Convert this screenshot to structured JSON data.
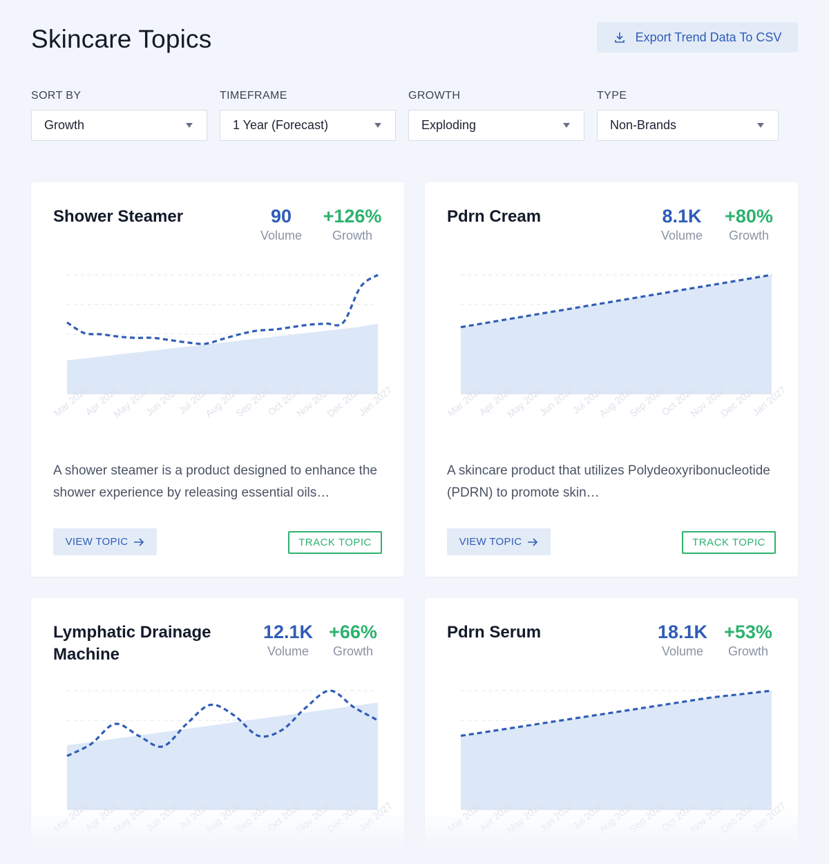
{
  "page": {
    "title": "Skincare Topics"
  },
  "export": {
    "label": "Export Trend Data To CSV",
    "icon": "download-icon"
  },
  "filters": [
    {
      "label": "SORT BY",
      "value": "Growth"
    },
    {
      "label": "TIMEFRAME",
      "value": "1 Year (Forecast)"
    },
    {
      "label": "GROWTH",
      "value": "Exploding"
    },
    {
      "label": "TYPE",
      "value": "Non-Brands"
    }
  ],
  "colors": {
    "accent": "#2f5cb7",
    "growth": "#2db26e",
    "area": "#dce8f8",
    "line": "#2f5cb7"
  },
  "cards": [
    {
      "title": "Shower Steamer",
      "volume": "90",
      "volume_label": "Volume",
      "growth": "+126%",
      "growth_label": "Growth",
      "description": "A shower steamer is a product designed to enhance the shower experience by releasing essential oils…",
      "view_label": "VIEW TOPIC",
      "track_label": "TRACK TOPIC"
    },
    {
      "title": "Pdrn Cream",
      "volume": "8.1K",
      "volume_label": "Volume",
      "growth": "+80%",
      "growth_label": "Growth",
      "description": "A skincare product that utilizes Polydeoxyribonucleotide (PDRN) to promote skin…",
      "view_label": "VIEW TOPIC",
      "track_label": "TRACK TOPIC"
    },
    {
      "title": "Lymphatic Drainage Machine",
      "volume": "12.1K",
      "volume_label": "Volume",
      "growth": "+66%",
      "growth_label": "Growth"
    },
    {
      "title": "Pdrn Serum",
      "volume": "18.1K",
      "volume_label": "Volume",
      "growth": "+53%",
      "growth_label": "Growth"
    }
  ],
  "chart_data": [
    {
      "type": "area",
      "x_labels": [
        "Mar 2026",
        "Apr 2026",
        "May 2026",
        "Jun 2026",
        "Jul 2026",
        "Aug 2026",
        "Sep 2026",
        "Oct 2026",
        "Nov 2026",
        "Dec 2026",
        "Jan 2027"
      ],
      "area": [
        0.28,
        0.3,
        0.32,
        0.34,
        0.36,
        0.38,
        0.4,
        0.42,
        0.44,
        0.46,
        0.48,
        0.5,
        0.52,
        0.54,
        0.56,
        0.59
      ],
      "forecast": [
        0.6,
        0.51,
        0.5,
        0.48,
        0.47,
        0.47,
        0.45,
        0.43,
        0.42,
        0.46,
        0.5,
        0.53,
        0.54,
        0.56,
        0.58,
        0.59,
        0.6,
        0.9,
        1.0
      ],
      "grid": true
    },
    {
      "type": "area",
      "x_labels": [
        "Mar 2026",
        "Apr 2026",
        "May 2026",
        "Jun 2026",
        "Jul 2026",
        "Aug 2026",
        "Sep 2026",
        "Oct 2026",
        "Nov 2026",
        "Dec 2026",
        "Jan 2027"
      ],
      "area": [
        0.56,
        0.6,
        0.64,
        0.68,
        0.72,
        0.76,
        0.8,
        0.84,
        0.88,
        0.92,
        0.96,
        1.0
      ],
      "forecast": [
        0.56,
        0.6,
        0.64,
        0.68,
        0.72,
        0.76,
        0.8,
        0.84,
        0.88,
        0.92,
        0.96,
        1.0
      ],
      "grid": true
    },
    {
      "type": "area",
      "x_labels": [
        "Mar 2026",
        "Apr 2026",
        "May 2026",
        "Jun 2026",
        "Jul 2026",
        "Aug 2026",
        "Sep 2026",
        "Oct 2026",
        "Nov 2026",
        "Dec 2026",
        "Jan 2027"
      ],
      "area": [
        0.54,
        0.58,
        0.62,
        0.66,
        0.7,
        0.74,
        0.78,
        0.82,
        0.86,
        0.9
      ],
      "forecast": [
        0.45,
        0.55,
        0.72,
        0.62,
        0.53,
        0.72,
        0.88,
        0.79,
        0.62,
        0.67,
        0.86,
        1.0,
        0.86,
        0.75
      ],
      "grid": true
    },
    {
      "type": "area",
      "x_labels": [
        "Mar 2026",
        "Apr 2026",
        "May 2026",
        "Jun 2026",
        "Jul 2026",
        "Aug 2026",
        "Sep 2026",
        "Oct 2026",
        "Nov 2026",
        "Dec 2026",
        "Jan 2027"
      ],
      "area": [
        0.62,
        0.66,
        0.7,
        0.74,
        0.78,
        0.82,
        0.86,
        0.9,
        0.94,
        0.97,
        1.0
      ],
      "forecast": [
        0.62,
        0.66,
        0.7,
        0.74,
        0.78,
        0.82,
        0.86,
        0.9,
        0.94,
        0.97,
        1.0
      ],
      "grid": true
    }
  ]
}
